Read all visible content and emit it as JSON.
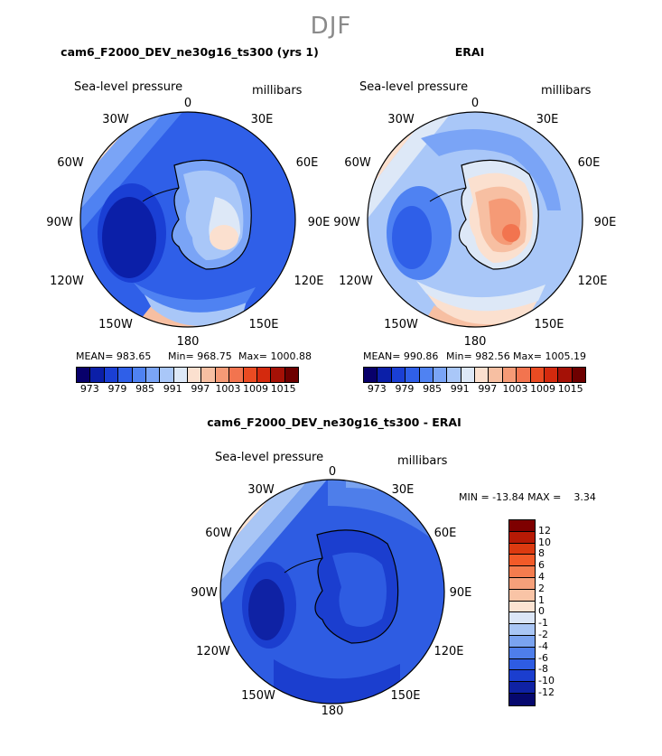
{
  "figure": {
    "season": "DJF",
    "panels": [
      {
        "title": "cam6_F2000_DEV_ne30g16_ts300 (yrs 1)",
        "variable": "Sea-level pressure",
        "units": "millibars",
        "stats": {
          "mean": "MEAN= 983.65",
          "min": "Min= 968.75",
          "max": "Max= 1000.88"
        }
      },
      {
        "title": "ERAI",
        "variable": "Sea-level pressure",
        "units": "millibars",
        "stats": {
          "mean": "MEAN= 990.86",
          "min": "Min= 982.56",
          "max": "Max= 1005.19"
        }
      },
      {
        "title": "cam6_F2000_DEV_ne30g16_ts300 - ERAI",
        "variable": "Sea-level pressure",
        "units": "millibars",
        "stats": {
          "minmax": "MIN = -13.84 MAX =    3.34"
        }
      }
    ],
    "longitude_labels": [
      "0",
      "30E",
      "60E",
      "90E",
      "120E",
      "150E",
      "180",
      "150W",
      "120W",
      "90W",
      "60W",
      "30W"
    ],
    "abs_colorbar": {
      "colors": [
        "#08006b",
        "#0b1fa8",
        "#1a3fd4",
        "#2f5fe8",
        "#4f82f2",
        "#7aa4f6",
        "#a9c7f8",
        "#dde8f7",
        "#fbe0cf",
        "#f7bfa2",
        "#f59a76",
        "#f2744f",
        "#ea4b22",
        "#d42a0e",
        "#a51106",
        "#6e0000"
      ],
      "labels": [
        "973",
        "979",
        "985",
        "991",
        "997",
        "1003",
        "1009",
        "1015"
      ]
    },
    "diff_colorbar": {
      "colors": [
        "#7e0000",
        "#b71a05",
        "#dc3a10",
        "#f25a28",
        "#f47c4e",
        "#f6a07a",
        "#f9c4a6",
        "#fce3d2",
        "#dbe6f7",
        "#a9c6f5",
        "#7aa3f0",
        "#4e7eea",
        "#2e5ce2",
        "#1b3ecf",
        "#0f22a4",
        "#06086e"
      ],
      "labels": [
        "12",
        "10",
        "8",
        "6",
        "4",
        "2",
        "1",
        "0",
        "-1",
        "-2",
        "-4",
        "-6",
        "-8",
        "-10",
        "-12"
      ]
    }
  }
}
